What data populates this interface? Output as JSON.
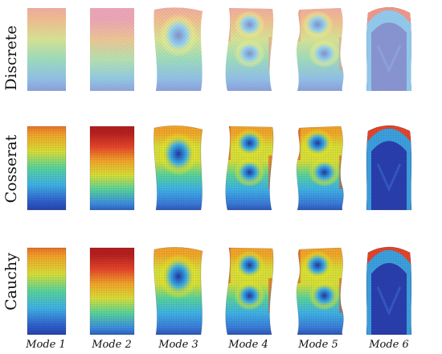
{
  "rows": [
    {
      "key": "discrete",
      "label": "Discrete",
      "style": "lattice"
    },
    {
      "key": "cosserat",
      "label": "Cosserat",
      "style": "mesh"
    },
    {
      "key": "cauchy",
      "label": "Cauchy",
      "style": "mesh"
    }
  ],
  "modes": [
    {
      "label": "Mode 1",
      "pattern": "gradient",
      "field_min_at": "bottom"
    },
    {
      "label": "Mode 2",
      "pattern": "gradient",
      "field_min_at": "bottom"
    },
    {
      "label": "Mode 3",
      "pattern": "single-spot",
      "shape": "sway"
    },
    {
      "label": "Mode 4",
      "pattern": "two-spots",
      "shape": "s-curve"
    },
    {
      "label": "Mode 5",
      "pattern": "two-spots-side",
      "shape": "double-s"
    },
    {
      "label": "Mode 6",
      "pattern": "arch",
      "shape": "bulge"
    }
  ],
  "colormap": {
    "name": "jet",
    "stops": [
      "#1e2d8f",
      "#2f64c8",
      "#3fb1e6",
      "#58d39c",
      "#d8df38",
      "#f2a52a",
      "#e5452b",
      "#b51f1f"
    ]
  },
  "lattice_colors": {
    "low": "#2d3bbf",
    "high": "#e24a4a"
  }
}
